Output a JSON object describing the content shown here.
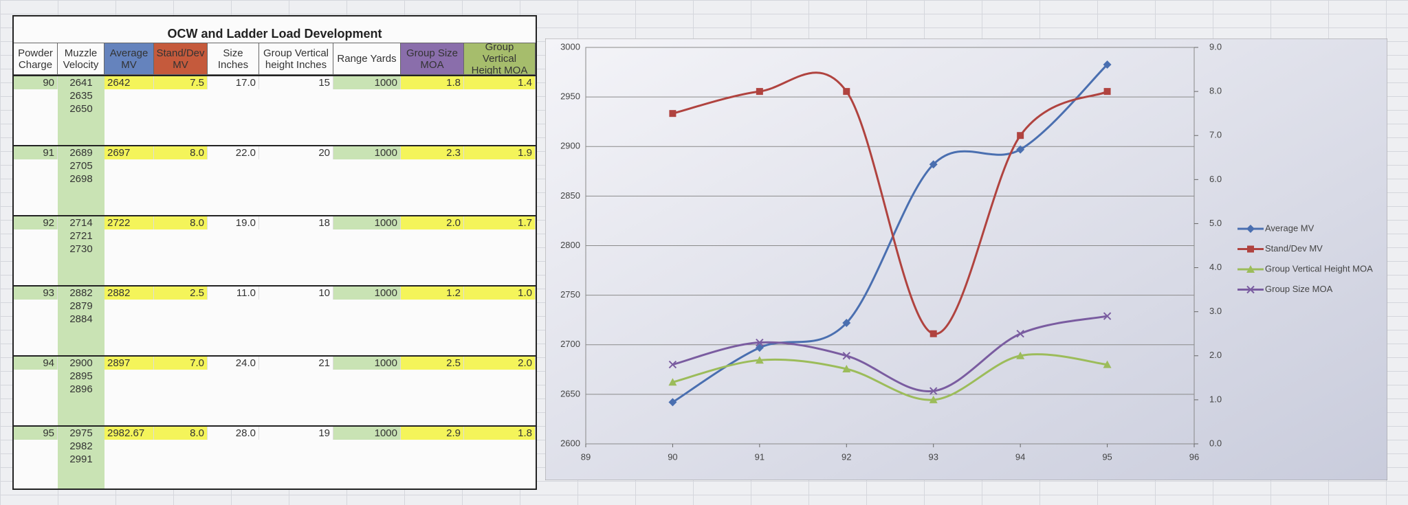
{
  "table": {
    "title": "OCW and Ladder Load Development",
    "headers": [
      "Powder Charge",
      "Muzzle Velocity",
      "Average MV",
      "Stand/Dev MV",
      "Size Inches",
      "Group Vertical height Inches",
      "Range Yards",
      "Group Size MOA",
      "Group Vertical Height MOA"
    ],
    "rows": [
      {
        "charge": "90",
        "velocities": [
          "2641",
          "2635",
          "2650"
        ],
        "average": "2642",
        "stddev": "7.5",
        "size": "17.0",
        "vertical": "15",
        "range": "1000",
        "size_moa": "1.8",
        "vertical_moa": "1.4"
      },
      {
        "charge": "91",
        "velocities": [
          "2689",
          "2705",
          "2698"
        ],
        "average": "2697",
        "stddev": "8.0",
        "size": "22.0",
        "vertical": "20",
        "range": "1000",
        "size_moa": "2.3",
        "vertical_moa": "1.9"
      },
      {
        "charge": "92",
        "velocities": [
          "2714",
          "2721",
          "2730"
        ],
        "average": "2722",
        "stddev": "8.0",
        "size": "19.0",
        "vertical": "18",
        "range": "1000",
        "size_moa": "2.0",
        "vertical_moa": "1.7"
      },
      {
        "charge": "93",
        "velocities": [
          "2882",
          "2879",
          "2884"
        ],
        "average": "2882",
        "stddev": "2.5",
        "size": "11.0",
        "vertical": "10",
        "range": "1000",
        "size_moa": "1.2",
        "vertical_moa": "1.0"
      },
      {
        "charge": "94",
        "velocities": [
          "2900",
          "2895",
          "2896"
        ],
        "average": "2897",
        "stddev": "7.0",
        "size": "24.0",
        "vertical": "21",
        "range": "1000",
        "size_moa": "2.5",
        "vertical_moa": "2.0"
      },
      {
        "charge": "95",
        "velocities": [
          "2975",
          "2982",
          "2991"
        ],
        "average": "2982.67",
        "stddev": "8.0",
        "size": "28.0",
        "vertical": "19",
        "range": "1000",
        "size_moa": "2.9",
        "vertical_moa": "1.8"
      }
    ]
  },
  "chart_data": {
    "type": "line",
    "x": [
      90,
      91,
      92,
      93,
      94,
      95
    ],
    "xlim": [
      89,
      96
    ],
    "xticks": [
      89,
      90,
      91,
      92,
      93,
      94,
      95,
      96
    ],
    "ylim": [
      2600,
      3000
    ],
    "yticks": [
      2600,
      2650,
      2700,
      2750,
      2800,
      2850,
      2900,
      2950,
      3000
    ],
    "y2lim": [
      0,
      9
    ],
    "y2ticks": [
      {
        "value": 0,
        "label": "0.0"
      },
      {
        "value": 1,
        "label": "1.0"
      },
      {
        "value": 2,
        "label": "2.0"
      },
      {
        "value": 3,
        "label": "3.0"
      },
      {
        "value": 4,
        "label": "4.0"
      },
      {
        "value": 5,
        "label": "5.0"
      },
      {
        "value": 6,
        "label": "6.0"
      },
      {
        "value": 7,
        "label": "7.0"
      },
      {
        "value": 8,
        "label": "8.0"
      },
      {
        "value": 9,
        "label": "9.0"
      }
    ],
    "grid": true,
    "legend": "right",
    "series": [
      {
        "name": "Average MV",
        "color": "#4a6fb0",
        "marker": "diamond",
        "values": [
          2642,
          2697,
          2722,
          2882,
          2897,
          2982.67
        ]
      },
      {
        "name": "Stand/Dev MV",
        "color": "#b0433f",
        "marker": "square",
        "axis": "y2",
        "values": [
          7.5,
          8.0,
          8.0,
          2.5,
          7.0,
          8.0
        ]
      },
      {
        "name": "Group Vertical Height MOA",
        "color": "#9cbc5a",
        "marker": "triangle",
        "axis": "y2",
        "values": [
          1.4,
          1.9,
          1.7,
          1.0,
          2.0,
          1.8
        ]
      },
      {
        "name": "Group Size MOA",
        "color": "#7a5ca0",
        "marker": "x",
        "axis": "y2",
        "values": [
          1.8,
          2.3,
          2.0,
          1.2,
          2.5,
          2.9
        ]
      }
    ]
  }
}
